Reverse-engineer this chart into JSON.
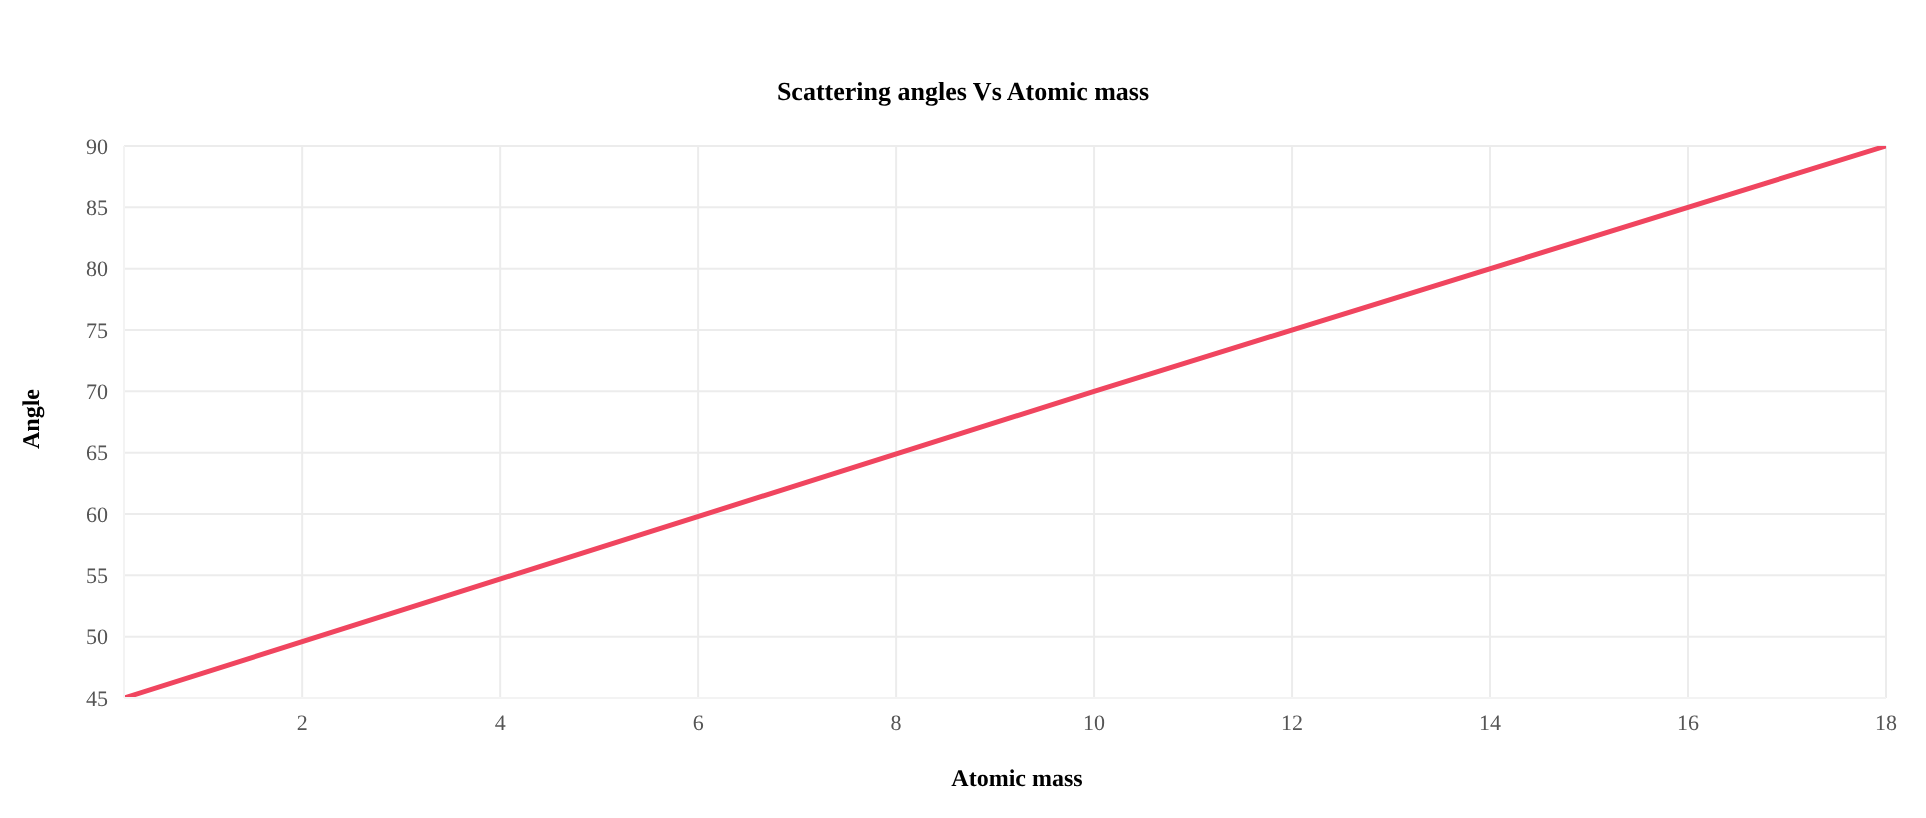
{
  "chart_data": {
    "type": "line",
    "title": "Scattering angles Vs Atomic mass",
    "xlabel": "Atomic mass",
    "ylabel": "Angle",
    "x": [
      0.2,
      10,
      18
    ],
    "series": [
      {
        "color": "#f0455f",
        "values": [
          45,
          70,
          90
        ]
      }
    ],
    "xlim": [
      0.2,
      18
    ],
    "xticks": [
      2,
      4,
      6,
      8,
      10,
      12,
      14,
      16,
      18
    ],
    "ylim": [
      45,
      90
    ],
    "yticks": [
      45,
      50,
      55,
      60,
      65,
      70,
      75,
      80,
      85,
      90
    ],
    "grid": true,
    "marker": "none",
    "line_style": "solid",
    "legend": false
  }
}
